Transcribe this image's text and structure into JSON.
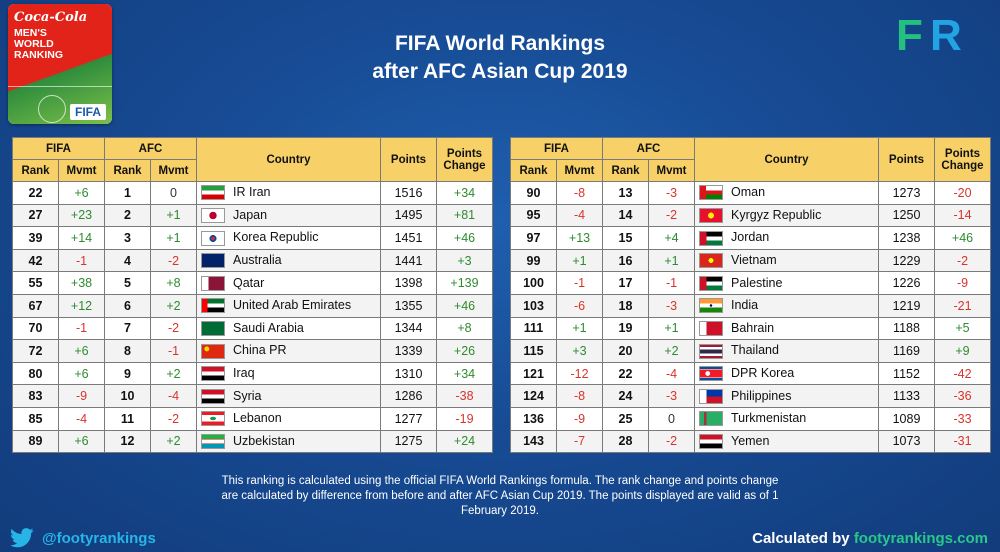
{
  "logo": {
    "brand": "Coca-Cola",
    "lines": [
      "MEN'S",
      "WORLD",
      "RANKING"
    ],
    "fifa": "FIFA"
  },
  "title": {
    "line1": "FIFA World Rankings",
    "line2": "after AFC Asian Cup 2019"
  },
  "fr_logo": {
    "f": "F",
    "r": "R"
  },
  "headers": {
    "fifa": "FIFA",
    "afc": "AFC",
    "country": "Country",
    "points": "Points",
    "points_change_1": "Points",
    "points_change_2": "Change",
    "rank": "Rank",
    "mvmt": "Mvmt"
  },
  "left_rows": [
    {
      "fifa_rank": "22",
      "fifa_mvmt": "+6",
      "afc_rank": "1",
      "afc_mvmt": "0",
      "country": "IR Iran",
      "flag": "iran",
      "points": "1516",
      "change": "+34"
    },
    {
      "fifa_rank": "27",
      "fifa_mvmt": "+23",
      "afc_rank": "2",
      "afc_mvmt": "+1",
      "country": "Japan",
      "flag": "japan",
      "points": "1495",
      "change": "+81"
    },
    {
      "fifa_rank": "39",
      "fifa_mvmt": "+14",
      "afc_rank": "3",
      "afc_mvmt": "+1",
      "country": "Korea Republic",
      "flag": "korea",
      "points": "1451",
      "change": "+46"
    },
    {
      "fifa_rank": "42",
      "fifa_mvmt": "-1",
      "afc_rank": "4",
      "afc_mvmt": "-2",
      "country": "Australia",
      "flag": "australia",
      "points": "1441",
      "change": "+3"
    },
    {
      "fifa_rank": "55",
      "fifa_mvmt": "+38",
      "afc_rank": "5",
      "afc_mvmt": "+8",
      "country": "Qatar",
      "flag": "qatar",
      "points": "1398",
      "change": "+139"
    },
    {
      "fifa_rank": "67",
      "fifa_mvmt": "+12",
      "afc_rank": "6",
      "afc_mvmt": "+2",
      "country": "United Arab Emirates",
      "flag": "uae",
      "points": "1355",
      "change": "+46"
    },
    {
      "fifa_rank": "70",
      "fifa_mvmt": "-1",
      "afc_rank": "7",
      "afc_mvmt": "-2",
      "country": "Saudi Arabia",
      "flag": "saudi",
      "points": "1344",
      "change": "+8"
    },
    {
      "fifa_rank": "72",
      "fifa_mvmt": "+6",
      "afc_rank": "8",
      "afc_mvmt": "-1",
      "country": "China PR",
      "flag": "china",
      "points": "1339",
      "change": "+26"
    },
    {
      "fifa_rank": "80",
      "fifa_mvmt": "+6",
      "afc_rank": "9",
      "afc_mvmt": "+2",
      "country": "Iraq",
      "flag": "iraq",
      "points": "1310",
      "change": "+34"
    },
    {
      "fifa_rank": "83",
      "fifa_mvmt": "-9",
      "afc_rank": "10",
      "afc_mvmt": "-4",
      "country": "Syria",
      "flag": "syria",
      "points": "1286",
      "change": "-38"
    },
    {
      "fifa_rank": "85",
      "fifa_mvmt": "-4",
      "afc_rank": "11",
      "afc_mvmt": "-2",
      "country": "Lebanon",
      "flag": "lebanon",
      "points": "1277",
      "change": "-19"
    },
    {
      "fifa_rank": "89",
      "fifa_mvmt": "+6",
      "afc_rank": "12",
      "afc_mvmt": "+2",
      "country": "Uzbekistan",
      "flag": "uzbekistan",
      "points": "1275",
      "change": "+24"
    }
  ],
  "right_rows": [
    {
      "fifa_rank": "90",
      "fifa_mvmt": "-8",
      "afc_rank": "13",
      "afc_mvmt": "-3",
      "country": "Oman",
      "flag": "oman",
      "points": "1273",
      "change": "-20"
    },
    {
      "fifa_rank": "95",
      "fifa_mvmt": "-4",
      "afc_rank": "14",
      "afc_mvmt": "-2",
      "country": "Kyrgyz Republic",
      "flag": "kyrgyz",
      "points": "1250",
      "change": "-14"
    },
    {
      "fifa_rank": "97",
      "fifa_mvmt": "+13",
      "afc_rank": "15",
      "afc_mvmt": "+4",
      "country": "Jordan",
      "flag": "jordan",
      "points": "1238",
      "change": "+46"
    },
    {
      "fifa_rank": "99",
      "fifa_mvmt": "+1",
      "afc_rank": "16",
      "afc_mvmt": "+1",
      "country": "Vietnam",
      "flag": "vietnam",
      "points": "1229",
      "change": "-2"
    },
    {
      "fifa_rank": "100",
      "fifa_mvmt": "-1",
      "afc_rank": "17",
      "afc_mvmt": "-1",
      "country": "Palestine",
      "flag": "palestine",
      "points": "1226",
      "change": "-9"
    },
    {
      "fifa_rank": "103",
      "fifa_mvmt": "-6",
      "afc_rank": "18",
      "afc_mvmt": "-3",
      "country": "India",
      "flag": "india",
      "points": "1219",
      "change": "-21"
    },
    {
      "fifa_rank": "111",
      "fifa_mvmt": "+1",
      "afc_rank": "19",
      "afc_mvmt": "+1",
      "country": "Bahrain",
      "flag": "bahrain",
      "points": "1188",
      "change": "+5"
    },
    {
      "fifa_rank": "115",
      "fifa_mvmt": "+3",
      "afc_rank": "20",
      "afc_mvmt": "+2",
      "country": "Thailand",
      "flag": "thailand",
      "points": "1169",
      "change": "+9"
    },
    {
      "fifa_rank": "121",
      "fifa_mvmt": "-12",
      "afc_rank": "22",
      "afc_mvmt": "-4",
      "country": "DPR Korea",
      "flag": "dprk",
      "points": "1152",
      "change": "-42"
    },
    {
      "fifa_rank": "124",
      "fifa_mvmt": "-8",
      "afc_rank": "24",
      "afc_mvmt": "-3",
      "country": "Philippines",
      "flag": "philippines",
      "points": "1133",
      "change": "-36"
    },
    {
      "fifa_rank": "136",
      "fifa_mvmt": "-9",
      "afc_rank": "25",
      "afc_mvmt": "0",
      "country": "Turkmenistan",
      "flag": "turkmenistan",
      "points": "1089",
      "change": "-33"
    },
    {
      "fifa_rank": "143",
      "fifa_mvmt": "-7",
      "afc_rank": "28",
      "afc_mvmt": "-2",
      "country": "Yemen",
      "flag": "yemen",
      "points": "1073",
      "change": "-31"
    }
  ],
  "footnote": "This ranking is calculated using the official FIFA World Rankings formula. The rank change and points change are calculated by difference from before and after AFC Asian Cup 2019. The points displayed are valid as of 1 February 2019.",
  "twitter_handle": "@footyrankings",
  "credit": {
    "prefix": "Calculated by ",
    "site": "footyrankings.com"
  },
  "colors": {
    "positive": "#2e8b2e",
    "negative": "#d9342b",
    "header": "#f7d167",
    "background": "#174b94"
  },
  "icons": {
    "social": "twitter-bird-icon"
  }
}
